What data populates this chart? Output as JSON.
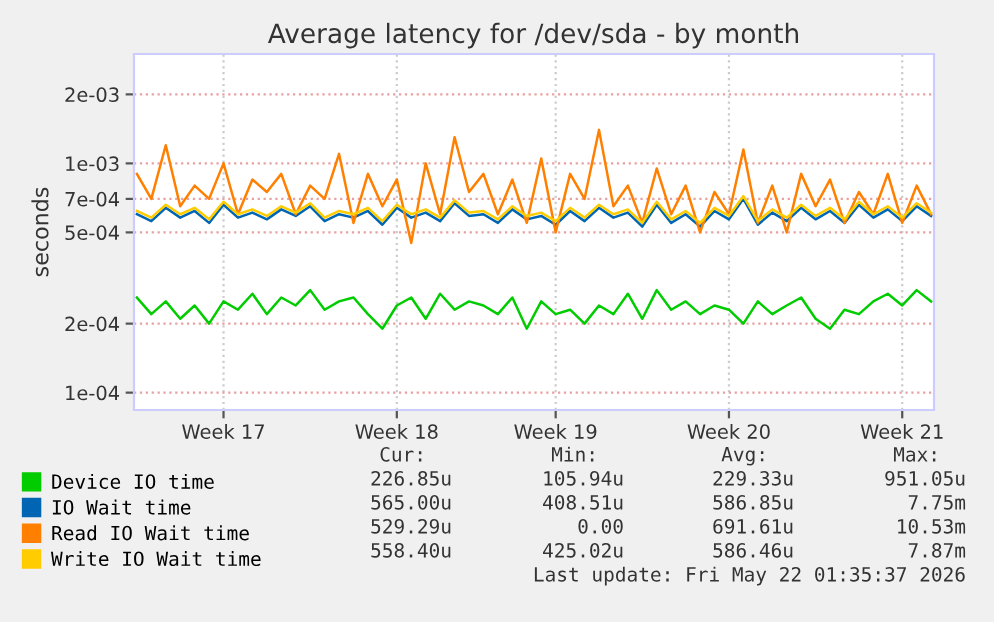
{
  "chart_data": {
    "type": "line",
    "title": "Average latency for /dev/sda - by month",
    "ylabel": "seconds",
    "categories": [
      null,
      null,
      null,
      null,
      null,
      null,
      "Week 17",
      null,
      null,
      null,
      null,
      null,
      null,
      null,
      null,
      null,
      null,
      null,
      "Week 18",
      null,
      null,
      null,
      null,
      null,
      null,
      null,
      null,
      null,
      null,
      "Week 19",
      null,
      null,
      null,
      null,
      null,
      null,
      null,
      null,
      null,
      null,
      null,
      "Week 20",
      null,
      null,
      null,
      null,
      null,
      null,
      null,
      null,
      null,
      null,
      null,
      "Week 21",
      null,
      null
    ],
    "series": [
      {
        "name": "Device IO time",
        "color": "#00cc00",
        "values": [
          0.00026,
          0.00022,
          0.00025,
          0.00021,
          0.00024,
          0.0002,
          0.00025,
          0.00023,
          0.00027,
          0.00022,
          0.00026,
          0.00024,
          0.00028,
          0.00023,
          0.00025,
          0.00026,
          0.00022,
          0.00019,
          0.00024,
          0.00026,
          0.00021,
          0.00027,
          0.00023,
          0.00025,
          0.00024,
          0.00022,
          0.00026,
          0.00019,
          0.00025,
          0.00022,
          0.00023,
          0.0002,
          0.00024,
          0.00022,
          0.00027,
          0.00021,
          0.00028,
          0.00023,
          0.00025,
          0.00022,
          0.00024,
          0.00023,
          0.0002,
          0.00025,
          0.00022,
          0.00024,
          0.00026,
          0.00021,
          0.00019,
          0.00023,
          0.00022,
          0.00025,
          0.00027,
          0.00024,
          0.00028,
          0.00025
        ]
      },
      {
        "name": "IO Wait time",
        "color": "#0066b3",
        "values": [
          0.0006,
          0.00056,
          0.00064,
          0.00058,
          0.00062,
          0.00055,
          0.00066,
          0.00058,
          0.00061,
          0.00057,
          0.00063,
          0.00059,
          0.00065,
          0.00056,
          0.0006,
          0.00058,
          0.00062,
          0.00054,
          0.00064,
          0.00058,
          0.00061,
          0.00056,
          0.00067,
          0.00059,
          0.0006,
          0.00055,
          0.00063,
          0.00057,
          0.00059,
          0.00054,
          0.00062,
          0.00056,
          0.00064,
          0.00058,
          0.00061,
          0.00053,
          0.00066,
          0.00055,
          0.0006,
          0.00053,
          0.00062,
          0.00057,
          0.0007,
          0.00054,
          0.00061,
          0.00056,
          0.00064,
          0.00057,
          0.00062,
          0.00055,
          0.00066,
          0.00058,
          0.00063,
          0.00056,
          0.00065,
          0.00059
        ]
      },
      {
        "name": "Read IO Wait time",
        "color": "#ff8000",
        "values": [
          0.0009,
          0.0007,
          0.0012,
          0.00065,
          0.0008,
          0.0007,
          0.001,
          0.0006,
          0.00085,
          0.00075,
          0.0009,
          0.0006,
          0.0008,
          0.0007,
          0.0011,
          0.00055,
          0.0009,
          0.00065,
          0.00085,
          0.00045,
          0.001,
          0.0006,
          0.0013,
          0.00075,
          0.0009,
          0.0006,
          0.00085,
          0.00055,
          0.00105,
          0.0005,
          0.0009,
          0.0007,
          0.0014,
          0.00065,
          0.0008,
          0.00055,
          0.00095,
          0.0006,
          0.0008,
          0.0005,
          0.00075,
          0.0006,
          0.00115,
          0.00055,
          0.0008,
          0.0005,
          0.0009,
          0.00065,
          0.00085,
          0.00055,
          0.00075,
          0.0006,
          0.0009,
          0.00055,
          0.0008,
          0.0006
        ]
      },
      {
        "name": "Write IO Wait time",
        "color": "#ffcc00",
        "values": [
          0.00062,
          0.00058,
          0.00066,
          0.0006,
          0.00064,
          0.00057,
          0.00068,
          0.0006,
          0.00063,
          0.00059,
          0.00065,
          0.00061,
          0.00067,
          0.00058,
          0.00062,
          0.0006,
          0.00064,
          0.00056,
          0.00066,
          0.0006,
          0.00063,
          0.00058,
          0.00069,
          0.00061,
          0.00062,
          0.00057,
          0.00065,
          0.00059,
          0.00061,
          0.00056,
          0.00064,
          0.00058,
          0.00066,
          0.0006,
          0.00063,
          0.00055,
          0.00068,
          0.00057,
          0.00062,
          0.00055,
          0.00064,
          0.00059,
          0.00072,
          0.00056,
          0.00063,
          0.00058,
          0.00066,
          0.00059,
          0.00064,
          0.00057,
          0.00068,
          0.0006,
          0.00065,
          0.00058,
          0.00067,
          0.00061
        ]
      }
    ],
    "log": "y",
    "ylim": [
      8.4e-05,
      0.003
    ],
    "yticks": [
      {
        "value": 0.0001,
        "label": "1e-04"
      },
      {
        "value": 0.0002,
        "label": "2e-04"
      },
      {
        "value": 0.0005,
        "label": "5e-04"
      },
      {
        "value": 0.0007,
        "label": "7e-04"
      },
      {
        "value": 0.001,
        "label": "1e-03"
      },
      {
        "value": 0.002,
        "label": "2e-03"
      }
    ],
    "grid": true,
    "legend": "bottom",
    "line_style": "solid",
    "marker": "none",
    "annotations": [
      "Cur:",
      "Min:",
      "Avg:",
      "Max:",
      "226.85u",
      "105.94u",
      "229.33u",
      "951.05u",
      "565.00u",
      "408.51u",
      "586.85u",
      "7.75m",
      "529.29u",
      "0.00",
      "691.61u",
      "10.53m",
      "558.40u",
      "425.02u",
      "586.46u",
      "7.87m",
      "Last update: Fri May 22 01:35:37 2026"
    ]
  }
}
